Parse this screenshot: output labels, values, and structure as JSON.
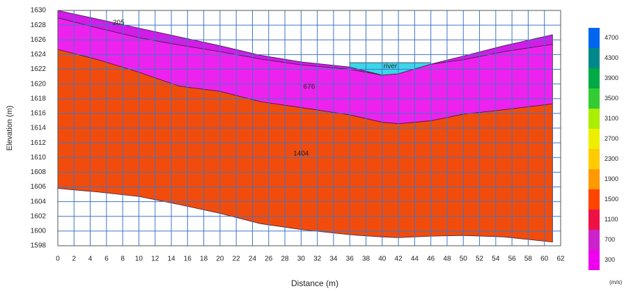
{
  "chart_data": {
    "type": "profile",
    "xlabel": "Distance (m)",
    "ylabel": "Elevation (m)",
    "xlim": [
      0,
      62
    ],
    "ylim": [
      1598,
      1630
    ],
    "xticks": [
      0,
      2,
      4,
      6,
      8,
      10,
      12,
      14,
      16,
      18,
      20,
      22,
      24,
      26,
      28,
      30,
      32,
      34,
      36,
      38,
      40,
      42,
      44,
      46,
      48,
      50,
      52,
      54,
      56,
      58,
      60,
      62
    ],
    "yticks": [
      1598,
      1600,
      1602,
      1604,
      1606,
      1608,
      1610,
      1612,
      1614,
      1616,
      1618,
      1620,
      1622,
      1624,
      1626,
      1628,
      1630
    ],
    "grid": true,
    "grid_color": "#3f74c8",
    "layers": [
      {
        "label": "1404",
        "color": "#f24c0c",
        "x": [
          0,
          5,
          10,
          15,
          20,
          25,
          30,
          36,
          40,
          42,
          46,
          50,
          55,
          61
        ],
        "top": [
          1624.7,
          1623.3,
          1621.6,
          1619.7,
          1619.0,
          1617.6,
          1616.8,
          1615.8,
          1614.8,
          1614.6,
          1615.0,
          1615.9,
          1616.5,
          1617.3
        ],
        "bottom": [
          1605.8,
          1605.3,
          1604.7,
          1603.6,
          1602.4,
          1601.0,
          1600.2,
          1599.5,
          1599.2,
          1599.1,
          1599.3,
          1599.4,
          1599.2,
          1598.5
        ]
      },
      {
        "label": "676",
        "color": "#ee22ee",
        "x": [
          0,
          5,
          10,
          15,
          20,
          25,
          30,
          36,
          40,
          42,
          46,
          50,
          55,
          61
        ],
        "top": [
          1629.0,
          1627.6,
          1626.3,
          1625.3,
          1624.4,
          1623.4,
          1622.6,
          1622.0,
          1621.2,
          1621.4,
          1622.7,
          1623.3,
          1624.4,
          1625.4
        ],
        "bottom": [
          1624.7,
          1623.3,
          1621.6,
          1619.7,
          1619.0,
          1617.6,
          1616.8,
          1615.8,
          1614.8,
          1614.6,
          1615.0,
          1615.9,
          1616.5,
          1617.3
        ]
      },
      {
        "label": "205",
        "color": "#d21ce8",
        "x": [
          0,
          5,
          10,
          15,
          20,
          25,
          30,
          36,
          40,
          42,
          46,
          50,
          55,
          61
        ],
        "top": [
          1630.0,
          1628.8,
          1627.6,
          1626.4,
          1625.2,
          1623.9,
          1623.0,
          1622.3,
          1621.2,
          1621.4,
          1622.7,
          1623.8,
          1625.2,
          1626.7
        ],
        "bottom": [
          1629.0,
          1627.6,
          1626.3,
          1625.3,
          1624.4,
          1623.4,
          1622.6,
          1622.0,
          1621.2,
          1621.4,
          1622.7,
          1623.3,
          1624.4,
          1625.4
        ]
      },
      {
        "label": "river",
        "color": "#3cd6ea",
        "x": [
          36,
          40,
          42,
          46
        ],
        "top": [
          1622.9,
          1622.9,
          1622.9,
          1622.9
        ],
        "bottom": [
          1622.3,
          1621.2,
          1621.4,
          1622.7
        ]
      }
    ],
    "colorbar": {
      "unit": "(m/s)",
      "values": [
        300,
        700,
        1100,
        1500,
        1900,
        2300,
        2700,
        3100,
        3500,
        3900,
        4300,
        4700
      ],
      "colors": [
        "#ee00ee",
        "#cc22cc",
        "#ee1144",
        "#ff4400",
        "#ff9900",
        "#ffcc00",
        "#eeee00",
        "#aaee00",
        "#33cc33",
        "#00aa44",
        "#008888",
        "#0066ee"
      ]
    }
  }
}
